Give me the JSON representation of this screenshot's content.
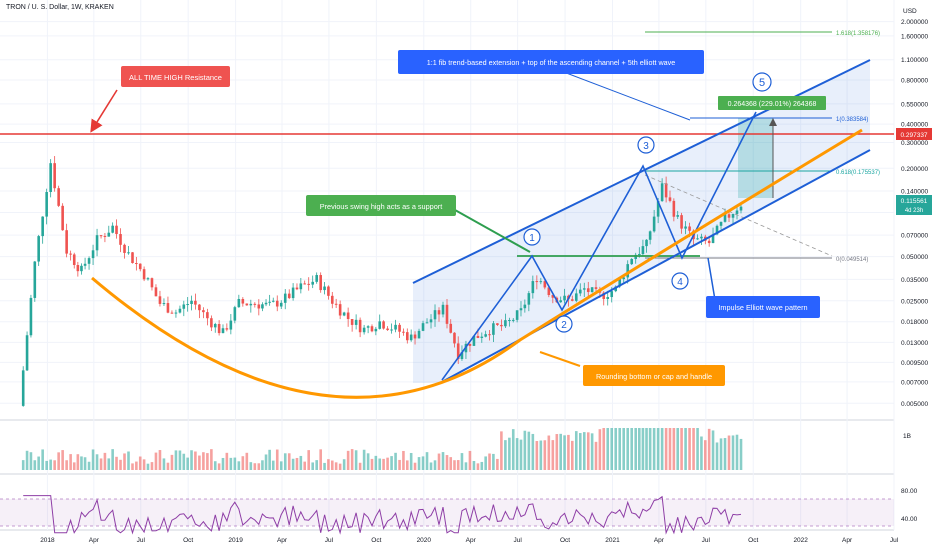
{
  "header": {
    "symbol": "TRON / U. S. Dollar, 1W, KRAKEN",
    "currency": "USD"
  },
  "price_axis": {
    "ticks": [
      "2.000000",
      "1.600000",
      "1.100000",
      "0.800000",
      "0.550000",
      "0.400000",
      "0.300000",
      "0.200000",
      "0.140000",
      "0.100000",
      "0.070000",
      "0.050000",
      "0.035000",
      "0.025000",
      "0.018000",
      "0.013000",
      "0.009500",
      "0.007000",
      "0.005000"
    ],
    "resistance_label": "0.297337",
    "current_price_label": "0.115561",
    "countdown": "4d 23h"
  },
  "volume_axis": {
    "ticks": [
      "1B"
    ]
  },
  "rsi_axis": {
    "ticks": [
      "80.00",
      "40.00"
    ]
  },
  "time_axis": {
    "ticks": [
      "2018",
      "Apr",
      "Jul",
      "Oct",
      "2019",
      "Apr",
      "Jul",
      "Oct",
      "2020",
      "Apr",
      "Jul",
      "Oct",
      "2021",
      "Apr",
      "Jul",
      "Oct",
      "2022",
      "Apr",
      "Jul"
    ]
  },
  "fib": {
    "level_1618": "1.618(1.358176)",
    "level_1": "1(0.383584)",
    "level_0618": "0.618(0.175537)",
    "level_0": "0(0.049514)"
  },
  "target_label": "0.264368 (229.01%) 264368",
  "wave_labels": [
    "1",
    "2",
    "3",
    "4",
    "5"
  ],
  "annotations": {
    "ath": "ALL TIME HIGH Resistance",
    "fib_note": "1:1 fib trend-based extension + top of the ascending channel + 5th elliott wave",
    "support": "Previous swing high acts as a support",
    "impulse": "Impulse Elliott wave pattern",
    "rounding": "Rounding bottom or cap and handle"
  },
  "colors": {
    "up": "#26a69a",
    "down": "#ef5350",
    "resistance": "#e53935",
    "channel": "#1e5fd6",
    "arc": "#ff9800",
    "support_line": "#2e9e4f",
    "fib_teal": "#1aa5a0",
    "fib_green": "#4caf50",
    "rsi": "#8e3ea6"
  },
  "chart_data": {
    "type": "candlestick",
    "title": "TRON / U. S. Dollar, 1W, KRAKEN",
    "y_scale": "log",
    "ylim": [
      0.0045,
      2.4
    ],
    "xlim": [
      "2017-10",
      "2022-07"
    ],
    "resistance": 0.297337,
    "current_price": 0.115561,
    "close_series": [
      {
        "date": "2017-11",
        "close": 0.0048
      },
      {
        "date": "2017-12",
        "close": 0.045
      },
      {
        "date": "2018-01",
        "close": 0.22
      },
      {
        "date": "2018-02",
        "close": 0.055
      },
      {
        "date": "2018-03",
        "close": 0.04
      },
      {
        "date": "2018-04",
        "close": 0.065
      },
      {
        "date": "2018-05",
        "close": 0.08
      },
      {
        "date": "2018-06",
        "close": 0.052
      },
      {
        "date": "2018-07",
        "close": 0.038
      },
      {
        "date": "2018-08",
        "close": 0.024
      },
      {
        "date": "2018-09",
        "close": 0.021
      },
      {
        "date": "2018-10",
        "close": 0.025
      },
      {
        "date": "2018-11",
        "close": 0.019
      },
      {
        "date": "2018-12",
        "close": 0.015
      },
      {
        "date": "2019-01",
        "close": 0.024
      },
      {
        "date": "2019-02",
        "close": 0.024
      },
      {
        "date": "2019-03",
        "close": 0.023
      },
      {
        "date": "2019-04",
        "close": 0.026
      },
      {
        "date": "2019-05",
        "close": 0.031
      },
      {
        "date": "2019-06",
        "close": 0.035
      },
      {
        "date": "2019-07",
        "close": 0.025
      },
      {
        "date": "2019-08",
        "close": 0.019
      },
      {
        "date": "2019-09",
        "close": 0.016
      },
      {
        "date": "2019-10",
        "close": 0.018
      },
      {
        "date": "2019-11",
        "close": 0.016
      },
      {
        "date": "2019-12",
        "close": 0.014
      },
      {
        "date": "2020-01",
        "close": 0.018
      },
      {
        "date": "2020-02",
        "close": 0.022
      },
      {
        "date": "2020-03",
        "close": 0.011
      },
      {
        "date": "2020-04",
        "close": 0.014
      },
      {
        "date": "2020-05",
        "close": 0.016
      },
      {
        "date": "2020-06",
        "close": 0.017
      },
      {
        "date": "2020-07",
        "close": 0.021
      },
      {
        "date": "2020-08",
        "close": 0.037
      },
      {
        "date": "2020-09",
        "close": 0.027
      },
      {
        "date": "2020-10",
        "close": 0.025
      },
      {
        "date": "2020-11",
        "close": 0.03
      },
      {
        "date": "2020-12",
        "close": 0.027
      },
      {
        "date": "2021-01",
        "close": 0.03
      },
      {
        "date": "2021-02",
        "close": 0.05
      },
      {
        "date": "2021-03",
        "close": 0.06
      },
      {
        "date": "2021-04",
        "close": 0.15
      },
      {
        "date": "2021-05",
        "close": 0.09
      },
      {
        "date": "2021-06",
        "close": 0.065
      },
      {
        "date": "2021-07",
        "close": 0.062
      },
      {
        "date": "2021-08",
        "close": 0.09
      },
      {
        "date": "2021-09",
        "close": 0.115
      }
    ],
    "fib_levels": [
      {
        "ratio": 1.618,
        "price": 1.358176
      },
      {
        "ratio": 1,
        "price": 0.383584
      },
      {
        "ratio": 0.618,
        "price": 0.175537
      },
      {
        "ratio": 0,
        "price": 0.049514
      }
    ],
    "target": {
      "price": 0.264368,
      "percent": 229.01
    },
    "indicators": [
      "volume",
      "rsi"
    ]
  }
}
